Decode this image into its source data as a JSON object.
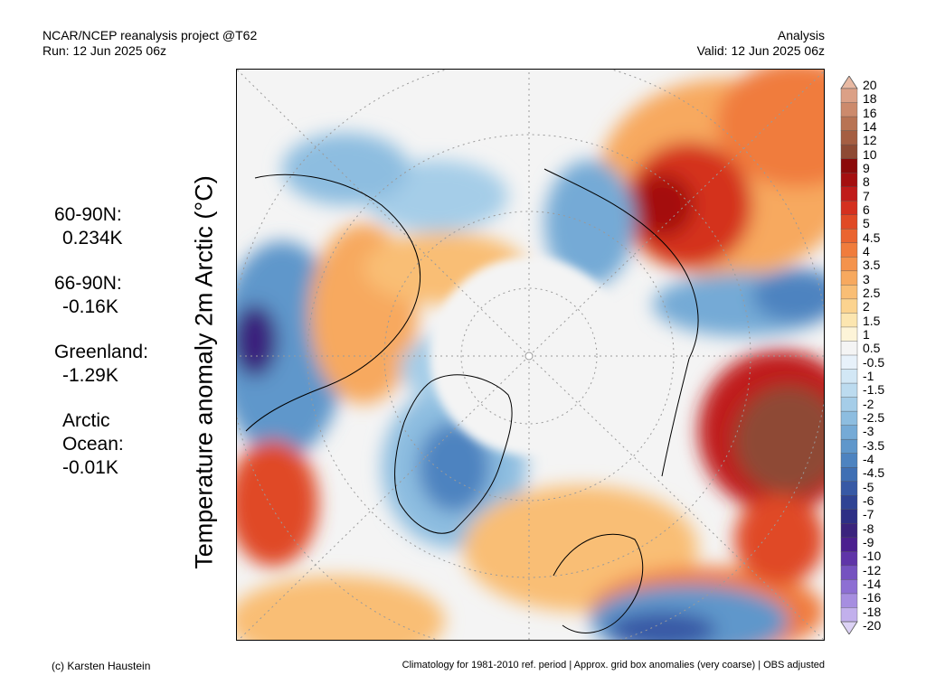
{
  "header": {
    "left_line1": "NCAR/NCEP reanalysis project @T62",
    "left_line2": "Run: 12 Jun 2025 06z",
    "right_line1": "Analysis",
    "right_line2": "Valid: 12 Jun 2025 06z"
  },
  "side_stats": [
    {
      "label": "60-90N:",
      "value": "0.234K"
    },
    {
      "label": "66-90N:",
      "value": "-0.16K"
    },
    {
      "label": "Greenland:",
      "value": "-1.29K"
    },
    {
      "label_line1": "Arctic",
      "label_line2": "Ocean:",
      "value": "-0.01K"
    }
  ],
  "map_title": "Temperature anomaly 2m Arctic (°C)",
  "colorbar": {
    "labels": [
      "20",
      "18",
      "16",
      "14",
      "12",
      "10",
      "9",
      "8",
      "7",
      "6",
      "5",
      "4.5",
      "4",
      "3.5",
      "3",
      "2.5",
      "2",
      "1.5",
      "1",
      "0.5",
      "-0.5",
      "-1",
      "-1.5",
      "-2",
      "-2.5",
      "-3",
      "-3.5",
      "-4",
      "-4.5",
      "-5",
      "-6",
      "-7",
      "-8",
      "-9",
      "-10",
      "-12",
      "-14",
      "-16",
      "-18",
      "-20"
    ],
    "colors": [
      "#e8b9a3",
      "#dba086",
      "#cc8a6c",
      "#b87353",
      "#a55e42",
      "#8e4a34",
      "#8b0a0a",
      "#a40f10",
      "#c01b1a",
      "#d4301f",
      "#e04a25",
      "#ea6430",
      "#f07c3c",
      "#f4934c",
      "#f7a95f",
      "#f9be75",
      "#fbd38f",
      "#fce6b0",
      "#fdf4d8",
      "#f4f4f4",
      "#e7f1fa",
      "#d2e7f5",
      "#bcdbef",
      "#a5cde8",
      "#8dbde0",
      "#75aad6",
      "#5f97cb",
      "#4d83c0",
      "#3f6fb4",
      "#3759a5",
      "#2f4394",
      "#2d2f85",
      "#3a237d",
      "#4b1f8f",
      "#5f34a8",
      "#7552c0",
      "#8d6fd3",
      "#a68ee0",
      "#c2b0ec",
      "#dcd2f5"
    ]
  },
  "footer": {
    "left": "(c) Karsten Haustein",
    "right": "Climatology for 1981-2010 ref. period | Approx. grid box anomalies (very coarse) | OBS adjusted"
  }
}
